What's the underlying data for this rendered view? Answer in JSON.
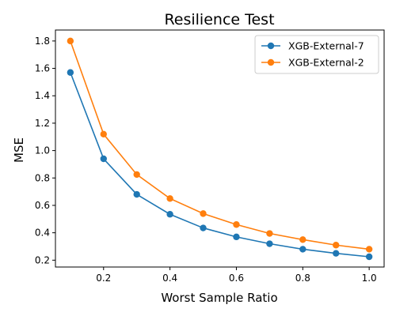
{
  "chart_data": {
    "type": "line",
    "title": "Resilience Test",
    "xlabel": "Worst Sample Ratio",
    "ylabel": "MSE",
    "xlim": [
      0.055,
      1.045
    ],
    "ylim": [
      0.15,
      1.88
    ],
    "xticks": [
      0.2,
      0.4,
      0.6,
      0.8,
      1.0
    ],
    "xtick_labels": [
      "0.2",
      "0.4",
      "0.6",
      "0.8",
      "1.0"
    ],
    "yticks": [
      0.2,
      0.4,
      0.6,
      0.8,
      1.0,
      1.2,
      1.4,
      1.6,
      1.8
    ],
    "ytick_labels": [
      "0.2",
      "0.4",
      "0.6",
      "0.8",
      "1.0",
      "1.2",
      "1.4",
      "1.6",
      "1.8"
    ],
    "grid": false,
    "legend_position": "top-right",
    "x": [
      0.1,
      0.2,
      0.3,
      0.4,
      0.5,
      0.6,
      0.7,
      0.8,
      0.9,
      1.0
    ],
    "series": [
      {
        "name": "XGB-External-7",
        "color": "#1f77b4",
        "values": [
          1.57,
          0.94,
          0.68,
          0.535,
          0.435,
          0.37,
          0.32,
          0.28,
          0.25,
          0.225
        ]
      },
      {
        "name": "XGB-External-2",
        "color": "#ff7f0e",
        "values": [
          1.8,
          1.12,
          0.825,
          0.65,
          0.54,
          0.46,
          0.395,
          0.35,
          0.31,
          0.28
        ]
      }
    ]
  }
}
